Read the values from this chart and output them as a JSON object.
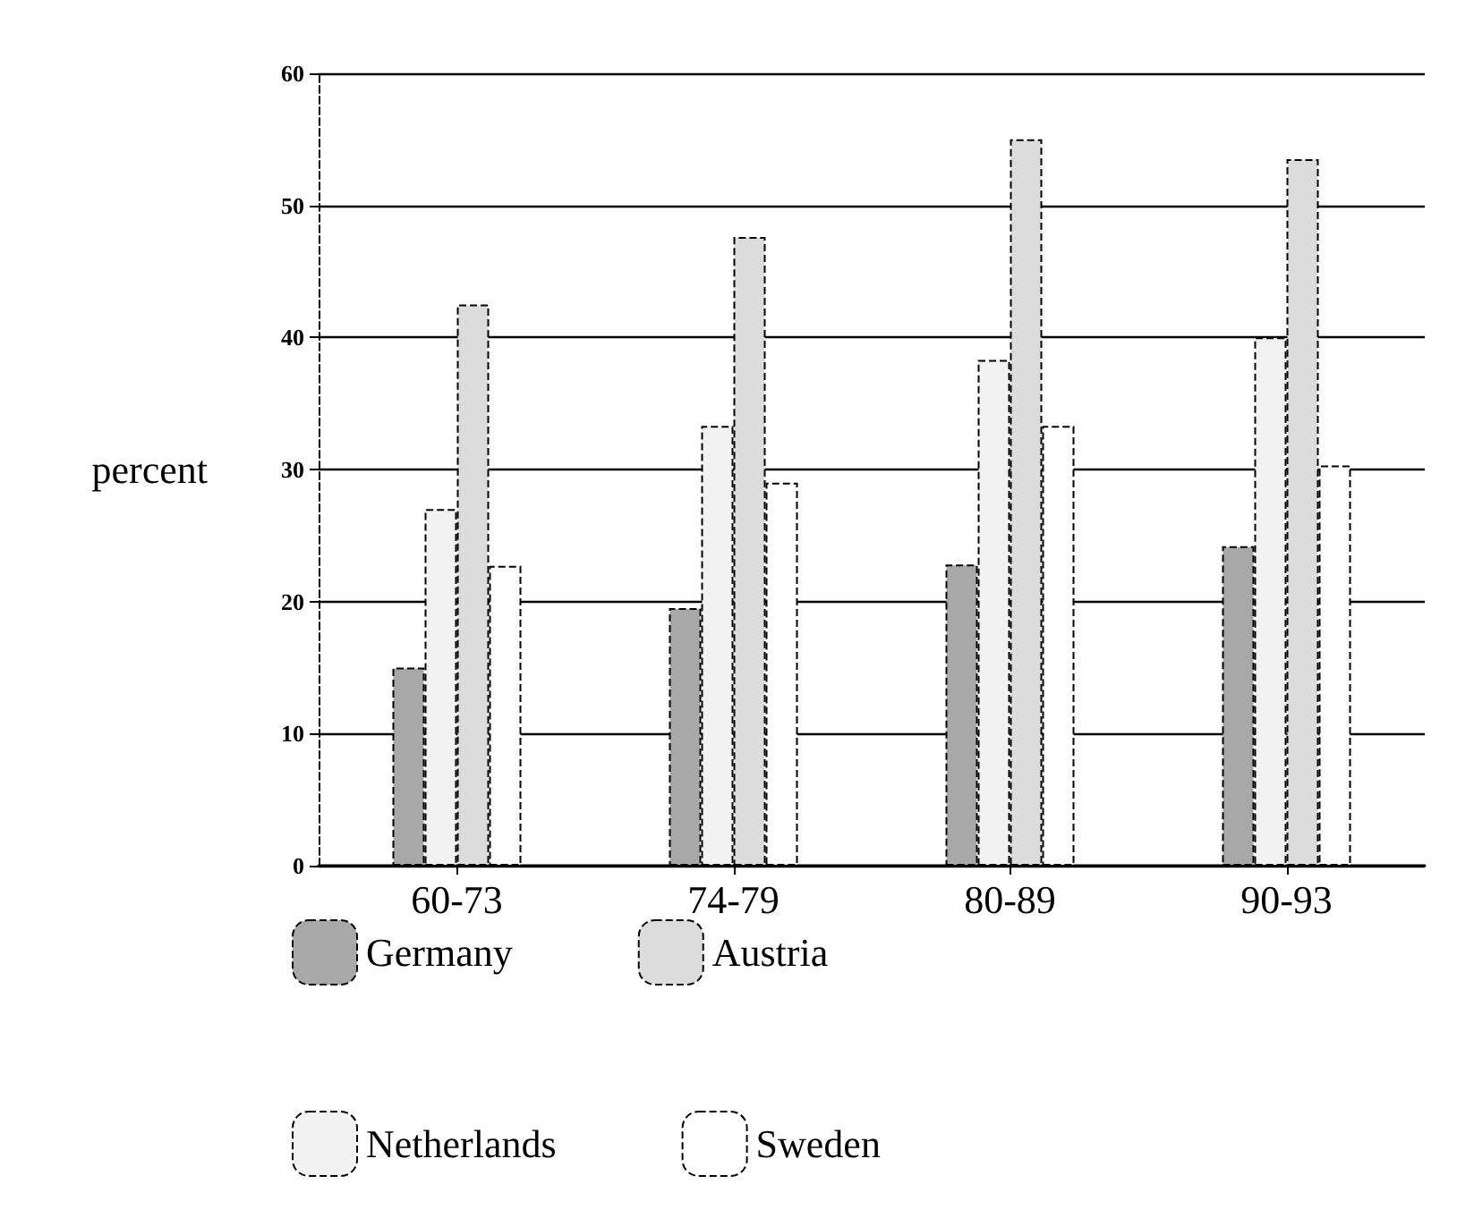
{
  "chart_data": {
    "type": "bar",
    "ylabel": "percent",
    "categories": [
      "60-73",
      "74-79",
      "80-89",
      "90-93"
    ],
    "series": [
      {
        "name": "Germany",
        "color": "#a8a8a8",
        "values": [
          15,
          19.5,
          22.8,
          24.2
        ]
      },
      {
        "name": "Netherlands",
        "color": "#f2f2f2",
        "values": [
          27,
          33.3,
          38.3,
          40
        ]
      },
      {
        "name": "Austria",
        "color": "#dcdcdc",
        "values": [
          42.5,
          47.6,
          55,
          53.5
        ]
      },
      {
        "name": "Sweden",
        "color": "#ffffff",
        "values": [
          22.7,
          29,
          33.3,
          30.3
        ]
      }
    ],
    "ylim": [
      0,
      60
    ],
    "yticks": [
      0,
      10,
      20,
      30,
      40,
      50,
      60
    ],
    "grid": "y",
    "legend": "bottom"
  }
}
